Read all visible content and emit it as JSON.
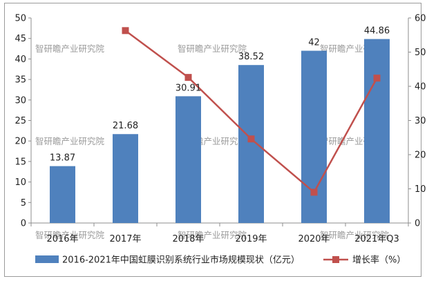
{
  "chart_data": {
    "type": "bar",
    "categories": [
      "2016年",
      "2017年",
      "2018年",
      "2019年",
      "2020年",
      "2021年Q3"
    ],
    "series": [
      {
        "name": "2016-2021年中国虹膜识别系统行业市场规模现状（亿元）",
        "type": "bar",
        "axis": "left",
        "values": [
          13.87,
          21.68,
          30.91,
          38.52,
          42,
          44.86
        ],
        "labels": [
          "13.87",
          "21.68",
          "30.91",
          "38.52",
          "42",
          "44.86"
        ],
        "color": "#4f81bd"
      },
      {
        "name": "增长率（%）",
        "type": "line",
        "axis": "right",
        "values": [
          null,
          56.3,
          42.6,
          24.6,
          9.0,
          42.4
        ],
        "color": "#c0504d"
      }
    ],
    "y_left": {
      "min": 0,
      "max": 50,
      "step": 5,
      "ticks": [
        "0",
        "5",
        "10",
        "15",
        "20",
        "25",
        "30",
        "35",
        "40",
        "45",
        "50"
      ]
    },
    "y_right": {
      "min": 0,
      "max": 60,
      "step": 10,
      "ticks": [
        "0",
        "10",
        "20",
        "30",
        "40",
        "50",
        "60"
      ]
    },
    "grid": false,
    "legend": "bottom"
  },
  "watermark": "智研瞻产业研究院"
}
